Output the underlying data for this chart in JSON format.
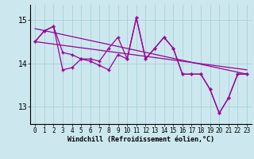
{
  "xlabel": "Windchill (Refroidissement éolien,°C)",
  "background_color": "#cce8ee",
  "line_color": "#990099",
  "grid_color": "#aad4dd",
  "ylim": [
    12.6,
    15.35
  ],
  "yticks": [
    13,
    14,
    15
  ],
  "xlim": [
    -0.5,
    23.5
  ],
  "x_ticks": [
    0,
    1,
    2,
    3,
    4,
    5,
    6,
    7,
    8,
    9,
    10,
    11,
    12,
    13,
    14,
    15,
    16,
    17,
    18,
    19,
    20,
    21,
    22,
    23
  ],
  "series1": [
    14.5,
    14.75,
    14.85,
    14.25,
    14.2,
    14.1,
    14.1,
    14.05,
    14.35,
    14.6,
    14.1,
    15.05,
    14.1,
    14.35,
    14.6,
    14.35,
    13.75,
    13.75,
    13.75,
    13.4,
    12.85,
    13.2,
    13.75,
    13.75
  ],
  "series2": [
    14.5,
    14.75,
    14.85,
    13.85,
    13.9,
    14.1,
    14.05,
    13.95,
    13.85,
    14.2,
    14.1,
    15.05,
    14.1,
    14.35,
    14.6,
    14.35,
    13.75,
    13.75,
    13.75,
    13.4,
    12.85,
    13.2,
    13.75,
    13.75
  ],
  "trend1": [
    14.8,
    13.75
  ],
  "trend2": [
    14.5,
    13.85
  ],
  "xlabel_fontsize": 6.0,
  "tick_fontsize": 5.5,
  "ytick_fontsize": 7.0
}
